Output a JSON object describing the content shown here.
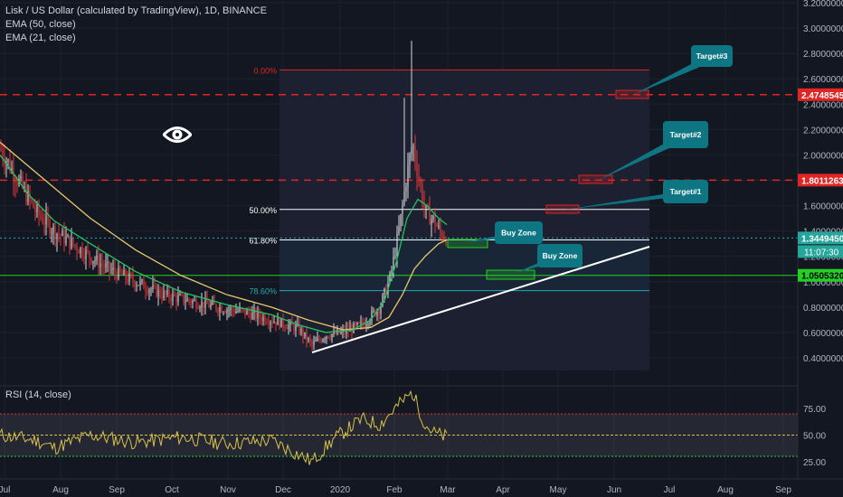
{
  "legend": {
    "symbol": "Lisk / US Dollar (calculated by TradingView), 1D, BINANCE",
    "ema50": "EMA (50, close)",
    "ema21": "EMA (21, close)",
    "rsi": "RSI (14, close)"
  },
  "colors": {
    "background": "#131722",
    "ema50": "#e5c86a",
    "ema21": "#22c55e",
    "up_candle": "#d8d8d8",
    "down_candle": "#e23a3a",
    "red_level": "#e02525",
    "green_level": "#24d024",
    "cyan_level": "#22aab5",
    "label_teal": "#0e7682",
    "rsi_line": "#d9c14a"
  },
  "chart_data": {
    "type": "candlestick",
    "price_axis_ticks": [
      "3.2000000",
      "3.0000000",
      "2.8000000",
      "2.6000000",
      "2.4000000",
      "2.2000000",
      "2.0000000",
      "1.8000000",
      "1.6000000",
      "1.4000000",
      "1.2000000",
      "1.0000000",
      "0.8000000",
      "0.6000000",
      "0.4000000"
    ],
    "price_range": [
      0.3,
      3.2
    ],
    "x_axis_labels": [
      "Jul",
      "Aug",
      "Sep",
      "Oct",
      "Nov",
      "Dec",
      "2020",
      "Feb",
      "Mar",
      "Apr",
      "May",
      "Jun",
      "Jul",
      "Aug",
      "Sep"
    ],
    "price_flags": {
      "target3": "2.4748545",
      "target2": "1.8011263",
      "current": "1.3449450",
      "countdown": "11:07:30",
      "buy_level": "1.0505320"
    },
    "fib_levels": [
      {
        "label": "0.00%",
        "price": 2.67
      },
      {
        "label": "50.00%",
        "price": 1.57
      },
      {
        "label": "61.80%",
        "price": 1.33
      },
      {
        "label": "78.60%",
        "price": 0.93
      }
    ],
    "horizontal_levels": [
      {
        "price": 2.4748545,
        "style": "dashed",
        "color": "red"
      },
      {
        "price": 1.8011263,
        "style": "dashed",
        "color": "red"
      },
      {
        "price": 1.344945,
        "style": "dotted",
        "color": "cyan"
      },
      {
        "price": 1.050532,
        "style": "solid",
        "color": "green"
      }
    ],
    "callouts": [
      "Target#3",
      "Target#2",
      "Target#1",
      "Buy Zone",
      "Buy Zone"
    ],
    "rsi": {
      "ticks": [
        "75.00",
        "50.00",
        "25.00"
      ],
      "levels": [
        70,
        50,
        30
      ],
      "range": [
        10,
        95
      ]
    }
  }
}
